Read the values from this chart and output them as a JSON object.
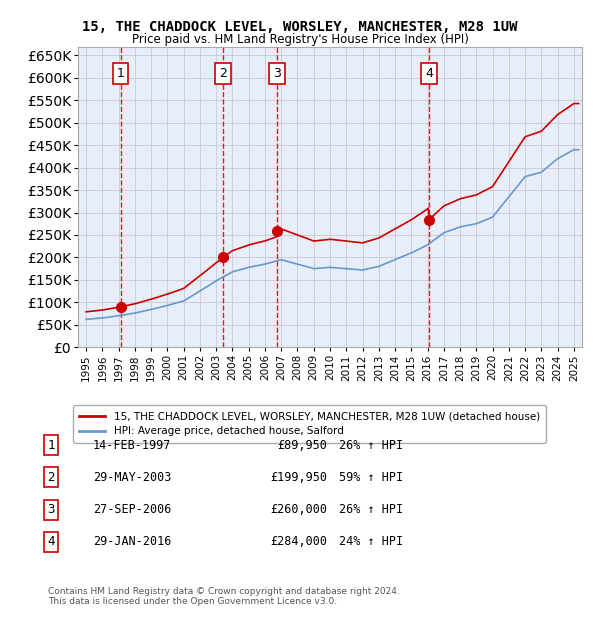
{
  "title": "15, THE CHADDOCK LEVEL, WORSLEY, MANCHESTER, M28 1UW",
  "subtitle": "Price paid vs. HM Land Registry's House Price Index (HPI)",
  "sales": [
    {
      "label": "1",
      "date_str": "14-FEB-1997",
      "year": 1997.12,
      "price": 89950,
      "pct": "26% ↑ HPI"
    },
    {
      "label": "2",
      "date_str": "29-MAY-2003",
      "year": 2003.41,
      "price": 199950,
      "pct": "59% ↑ HPI"
    },
    {
      "label": "3",
      "date_str": "27-SEP-2006",
      "year": 2006.74,
      "price": 260000,
      "pct": "26% ↑ HPI"
    },
    {
      "label": "4",
      "date_str": "29-JAN-2016",
      "year": 2016.08,
      "price": 284000,
      "pct": "24% ↑ HPI"
    }
  ],
  "hpi_line_color": "#6699cc",
  "price_line_color": "#cc0000",
  "sale_dot_color": "#cc0000",
  "vline_color": "#cc0000",
  "grid_color": "#ccccdd",
  "bg_color": "#e8eef8",
  "ylim": [
    0,
    670000
  ],
  "xlim_start": 1994.5,
  "xlim_end": 2025.5,
  "footer": "Contains HM Land Registry data © Crown copyright and database right 2024.\nThis data is licensed under the Open Government Licence v3.0.",
  "legend_label_red": "15, THE CHADDOCK LEVEL, WORSLEY, MANCHESTER, M28 1UW (detached house)",
  "legend_label_blue": "HPI: Average price, detached house, Salford"
}
